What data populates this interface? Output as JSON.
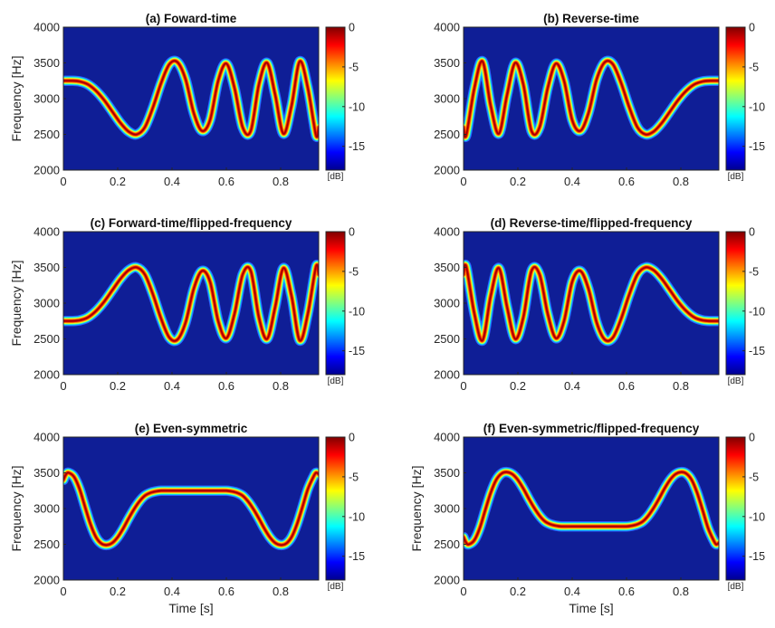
{
  "chart_data": [
    {
      "type": "heatmap",
      "title": "(a) Foward-time",
      "ylabel": "Frequency [Hz]",
      "xlabel": "",
      "xticks": [
        "0",
        "0.2",
        "0.4",
        "0.6",
        "0.8"
      ],
      "yticks": [
        "2000",
        "2500",
        "3000",
        "3500",
        "4000"
      ],
      "colorbar": {
        "label": "[dB]",
        "ticks": [
          "0",
          "-5",
          "-10",
          "-15"
        ],
        "range": [
          -18,
          0
        ],
        "colormap": "jet"
      },
      "xlim": [
        0,
        0.94
      ],
      "ylim": [
        2000,
        4000
      ],
      "ridge": {
        "t": [
          0,
          0.03,
          0.06,
          0.09,
          0.12,
          0.15,
          0.18,
          0.21,
          0.24,
          0.27,
          0.3,
          0.33,
          0.36,
          0.39,
          0.42,
          0.45,
          0.48,
          0.51,
          0.54,
          0.57,
          0.6,
          0.63,
          0.66,
          0.69,
          0.72,
          0.75,
          0.78,
          0.81,
          0.84,
          0.87,
          0.9,
          0.93,
          0.94
        ],
        "f": [
          3250,
          3250,
          3240,
          3200,
          3110,
          2980,
          2820,
          2660,
          2540,
          2500,
          2600,
          2880,
          3220,
          3480,
          3510,
          3270,
          2800,
          2550,
          2700,
          3250,
          3490,
          3150,
          2600,
          2550,
          3200,
          3500,
          3050,
          2510,
          2900,
          3520,
          3150,
          2490,
          2600
        ]
      }
    },
    {
      "type": "heatmap",
      "title": "(b) Reverse-time",
      "ylabel": "",
      "xlabel": "",
      "xticks": [
        "0",
        "0.2",
        "0.4",
        "0.6",
        "0.8"
      ],
      "yticks": [
        "2000",
        "2500",
        "3000",
        "3500",
        "4000"
      ],
      "colorbar": {
        "label": "[dB]",
        "ticks": [
          "0",
          "-5",
          "-10",
          "-15"
        ],
        "range": [
          -18,
          0
        ],
        "colormap": "jet"
      },
      "xlim": [
        0,
        0.94
      ],
      "ylim": [
        2000,
        4000
      ],
      "ridge": {
        "t": [
          0,
          0.01,
          0.04,
          0.07,
          0.1,
          0.13,
          0.16,
          0.19,
          0.22,
          0.25,
          0.28,
          0.31,
          0.34,
          0.37,
          0.4,
          0.43,
          0.46,
          0.49,
          0.52,
          0.55,
          0.58,
          0.61,
          0.64,
          0.67,
          0.7,
          0.73,
          0.76,
          0.79,
          0.82,
          0.85,
          0.88,
          0.91,
          0.94
        ],
        "f": [
          2600,
          2490,
          3150,
          3520,
          2900,
          2510,
          3050,
          3500,
          3200,
          2550,
          2600,
          3150,
          3490,
          3250,
          2700,
          2550,
          2800,
          3270,
          3510,
          3480,
          3220,
          2880,
          2600,
          2500,
          2540,
          2660,
          2820,
          2980,
          3110,
          3200,
          3240,
          3250,
          3250
        ]
      }
    },
    {
      "type": "heatmap",
      "title": "(c) Forward-time/flipped-frequency",
      "ylabel": "Frequency [Hz]",
      "xlabel": "",
      "xticks": [
        "0",
        "0.2",
        "0.4",
        "0.6",
        "0.8"
      ],
      "yticks": [
        "2000",
        "2500",
        "3000",
        "3500",
        "4000"
      ],
      "colorbar": {
        "label": "[dB]",
        "ticks": [
          "0",
          "-5",
          "-10",
          "-15"
        ],
        "range": [
          -18,
          0
        ],
        "colormap": "jet"
      },
      "xlim": [
        0,
        0.94
      ],
      "ylim": [
        2000,
        4000
      ],
      "ridge": {
        "t": [
          0,
          0.03,
          0.06,
          0.09,
          0.12,
          0.15,
          0.18,
          0.21,
          0.24,
          0.27,
          0.3,
          0.33,
          0.36,
          0.39,
          0.42,
          0.45,
          0.48,
          0.51,
          0.54,
          0.57,
          0.6,
          0.63,
          0.66,
          0.69,
          0.72,
          0.75,
          0.78,
          0.81,
          0.84,
          0.87,
          0.9,
          0.93,
          0.94
        ],
        "f": [
          2750,
          2750,
          2760,
          2800,
          2890,
          3020,
          3180,
          3340,
          3460,
          3500,
          3400,
          3120,
          2780,
          2520,
          2490,
          2730,
          3200,
          3450,
          3300,
          2750,
          2510,
          2850,
          3400,
          3450,
          2800,
          2500,
          2950,
          3490,
          3100,
          2480,
          2850,
          3510,
          3400
        ]
      }
    },
    {
      "type": "heatmap",
      "title": "(d) Reverse-time/flipped-frequency",
      "ylabel": "",
      "xlabel": "",
      "xticks": [
        "0",
        "0.2",
        "0.4",
        "0.6",
        "0.8"
      ],
      "yticks": [
        "2000",
        "2500",
        "3000",
        "3500",
        "4000"
      ],
      "colorbar": {
        "label": "[dB]",
        "ticks": [
          "0",
          "-5",
          "-10",
          "-15"
        ],
        "range": [
          -18,
          0
        ],
        "colormap": "jet"
      },
      "xlim": [
        0,
        0.94
      ],
      "ylim": [
        2000,
        4000
      ],
      "ridge": {
        "t": [
          0,
          0.01,
          0.04,
          0.07,
          0.1,
          0.13,
          0.16,
          0.19,
          0.22,
          0.25,
          0.28,
          0.31,
          0.34,
          0.37,
          0.4,
          0.43,
          0.46,
          0.49,
          0.52,
          0.55,
          0.58,
          0.61,
          0.64,
          0.67,
          0.7,
          0.73,
          0.76,
          0.79,
          0.82,
          0.85,
          0.88,
          0.91,
          0.94
        ],
        "f": [
          3400,
          3510,
          2850,
          2480,
          3100,
          3490,
          2950,
          2500,
          2800,
          3450,
          3400,
          2850,
          2510,
          2750,
          3300,
          3450,
          3200,
          2730,
          2490,
          2520,
          2780,
          3120,
          3400,
          3500,
          3460,
          3340,
          3180,
          3020,
          2890,
          2800,
          2760,
          2750,
          2750
        ]
      }
    },
    {
      "type": "heatmap",
      "title": "(e) Even-symmetric",
      "ylabel": "Frequency [Hz]",
      "xlabel": "Time [s]",
      "xticks": [
        "0",
        "0.2",
        "0.4",
        "0.6",
        "0.8"
      ],
      "yticks": [
        "2000",
        "2500",
        "3000",
        "3500",
        "4000"
      ],
      "colorbar": {
        "label": "[dB]",
        "ticks": [
          "0",
          "-5",
          "-10",
          "-15"
        ],
        "range": [
          -18,
          0
        ],
        "colormap": "jet"
      },
      "xlim": [
        0,
        0.94
      ],
      "ylim": [
        2000,
        4000
      ],
      "ridge": {
        "t": [
          0,
          0.01,
          0.02,
          0.04,
          0.06,
          0.08,
          0.1,
          0.12,
          0.14,
          0.16,
          0.18,
          0.2,
          0.22,
          0.24,
          0.26,
          0.28,
          0.3,
          0.32,
          0.34,
          0.36,
          0.4,
          0.44,
          0.48,
          0.52,
          0.56,
          0.6,
          0.62,
          0.64,
          0.66,
          0.68,
          0.7,
          0.72,
          0.74,
          0.76,
          0.78,
          0.8,
          0.82,
          0.84,
          0.86,
          0.88,
          0.9,
          0.92,
          0.93,
          0.94
        ],
        "f": [
          3400,
          3480,
          3500,
          3440,
          3270,
          3020,
          2780,
          2600,
          2510,
          2490,
          2520,
          2600,
          2720,
          2860,
          2990,
          3100,
          3180,
          3220,
          3240,
          3250,
          3250,
          3250,
          3250,
          3250,
          3250,
          3250,
          3240,
          3220,
          3180,
          3100,
          2990,
          2860,
          2720,
          2600,
          2520,
          2490,
          2510,
          2600,
          2780,
          3020,
          3270,
          3440,
          3500,
          3480
        ]
      }
    },
    {
      "type": "heatmap",
      "title": "(f) Even-symmetric/flipped-frequency",
      "ylabel": "Frequency [Hz]",
      "xlabel": "Time [s]",
      "xticks": [
        "0",
        "0.2",
        "0.4",
        "0.6",
        "0.8"
      ],
      "yticks": [
        "2000",
        "2500",
        "3000",
        "3500",
        "4000"
      ],
      "colorbar": {
        "label": "[dB]",
        "ticks": [
          "0",
          "-5",
          "-10",
          "-15"
        ],
        "range": [
          -18,
          0
        ],
        "colormap": "jet"
      },
      "xlim": [
        0,
        0.94
      ],
      "ylim": [
        2000,
        4000
      ],
      "ridge": {
        "t": [
          0,
          0.01,
          0.02,
          0.04,
          0.06,
          0.08,
          0.1,
          0.12,
          0.14,
          0.16,
          0.18,
          0.2,
          0.22,
          0.24,
          0.26,
          0.28,
          0.3,
          0.32,
          0.34,
          0.36,
          0.4,
          0.44,
          0.48,
          0.52,
          0.56,
          0.6,
          0.62,
          0.64,
          0.66,
          0.68,
          0.7,
          0.72,
          0.74,
          0.76,
          0.78,
          0.8,
          0.82,
          0.84,
          0.86,
          0.88,
          0.9,
          0.92,
          0.93,
          0.94
        ],
        "f": [
          2600,
          2520,
          2500,
          2560,
          2730,
          2980,
          3220,
          3400,
          3490,
          3510,
          3480,
          3400,
          3280,
          3140,
          3010,
          2900,
          2820,
          2780,
          2760,
          2750,
          2750,
          2750,
          2750,
          2750,
          2750,
          2750,
          2760,
          2780,
          2820,
          2900,
          3010,
          3140,
          3280,
          3400,
          3480,
          3510,
          3490,
          3400,
          3220,
          2980,
          2730,
          2560,
          2500,
          2520
        ]
      }
    }
  ]
}
